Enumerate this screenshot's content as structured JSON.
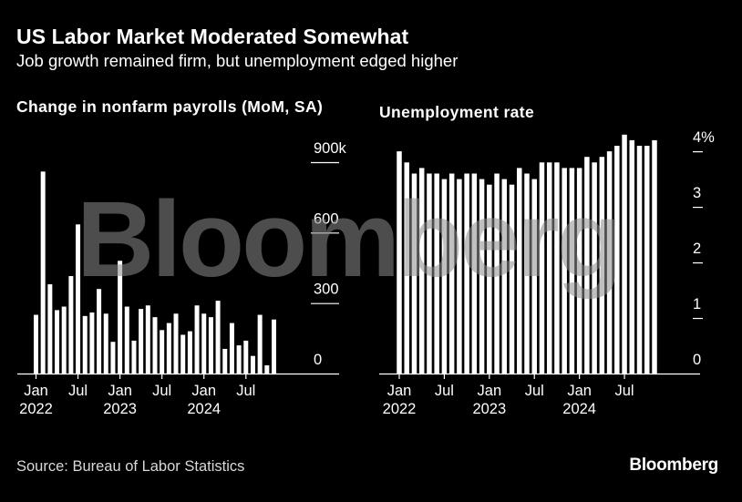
{
  "header": {
    "title": "US Labor Market Moderated Somewhat",
    "subtitle": "Job growth remained firm, but unemployment edged higher"
  },
  "footer": {
    "source": "Source: Bureau of Labor Statistics",
    "logo": "Bloomberg"
  },
  "watermark": "Bloomberg",
  "colors": {
    "background": "#000000",
    "bars": "#ffffff",
    "text": "#ffffff"
  },
  "chart_data": [
    {
      "type": "bar",
      "title": "Change in nonfarm payrolls (MoM, SA)",
      "x": [
        "2022-01",
        "2022-02",
        "2022-03",
        "2022-04",
        "2022-05",
        "2022-06",
        "2022-07",
        "2022-08",
        "2022-09",
        "2022-10",
        "2022-11",
        "2022-12",
        "2023-01",
        "2023-02",
        "2023-03",
        "2023-04",
        "2023-05",
        "2023-06",
        "2023-07",
        "2023-08",
        "2023-09",
        "2023-10",
        "2023-11",
        "2023-12",
        "2024-01",
        "2024-02",
        "2024-03",
        "2024-04",
        "2024-05",
        "2024-06",
        "2024-07",
        "2024-08",
        "2024-09",
        "2024-10",
        "2024-11"
      ],
      "values": [
        250,
        860,
        380,
        270,
        285,
        415,
        635,
        245,
        260,
        360,
        255,
        135,
        480,
        285,
        140,
        275,
        290,
        240,
        185,
        215,
        255,
        165,
        180,
        290,
        255,
        240,
        310,
        105,
        215,
        120,
        140,
        75,
        250,
        35,
        230
      ],
      "yticks": [
        0,
        300,
        600,
        900
      ],
      "ytick_labels": [
        "0",
        "300",
        "600",
        "900k"
      ],
      "ylim": [
        0,
        900
      ],
      "xtick_labels": [
        {
          "at": "2022-01",
          "line1": "Jan",
          "line2": "2022"
        },
        {
          "at": "2022-07",
          "line1": "Jul",
          "line2": ""
        },
        {
          "at": "2023-01",
          "line1": "Jan",
          "line2": "2023"
        },
        {
          "at": "2023-07",
          "line1": "Jul",
          "line2": ""
        },
        {
          "at": "2024-01",
          "line1": "Jan",
          "line2": "2024"
        },
        {
          "at": "2024-07",
          "line1": "Jul",
          "line2": ""
        }
      ]
    },
    {
      "type": "bar",
      "title": "Unemployment rate",
      "x": [
        "2022-01",
        "2022-02",
        "2022-03",
        "2022-04",
        "2022-05",
        "2022-06",
        "2022-07",
        "2022-08",
        "2022-09",
        "2022-10",
        "2022-11",
        "2022-12",
        "2023-01",
        "2023-02",
        "2023-03",
        "2023-04",
        "2023-05",
        "2023-06",
        "2023-07",
        "2023-08",
        "2023-09",
        "2023-10",
        "2023-11",
        "2023-12",
        "2024-01",
        "2024-02",
        "2024-03",
        "2024-04",
        "2024-05",
        "2024-06",
        "2024-07",
        "2024-08",
        "2024-09",
        "2024-10",
        "2024-11"
      ],
      "values": [
        4.0,
        3.8,
        3.6,
        3.7,
        3.6,
        3.6,
        3.5,
        3.6,
        3.5,
        3.6,
        3.6,
        3.5,
        3.4,
        3.6,
        3.5,
        3.4,
        3.7,
        3.6,
        3.5,
        3.8,
        3.8,
        3.8,
        3.7,
        3.7,
        3.7,
        3.9,
        3.8,
        3.9,
        4.0,
        4.1,
        4.3,
        4.2,
        4.1,
        4.1,
        4.2
      ],
      "yticks": [
        0,
        1,
        2,
        3,
        4
      ],
      "ytick_labels": [
        "0",
        "1",
        "2",
        "3",
        "4%"
      ],
      "ylim": [
        0,
        4.1
      ],
      "xtick_labels": [
        {
          "at": "2022-01",
          "line1": "Jan",
          "line2": "2022"
        },
        {
          "at": "2022-07",
          "line1": "Jul",
          "line2": ""
        },
        {
          "at": "2023-01",
          "line1": "Jan",
          "line2": "2023"
        },
        {
          "at": "2023-07",
          "line1": "Jul",
          "line2": ""
        },
        {
          "at": "2024-01",
          "line1": "Jan",
          "line2": "2024"
        },
        {
          "at": "2024-07",
          "line1": "Jul",
          "line2": ""
        }
      ]
    }
  ]
}
